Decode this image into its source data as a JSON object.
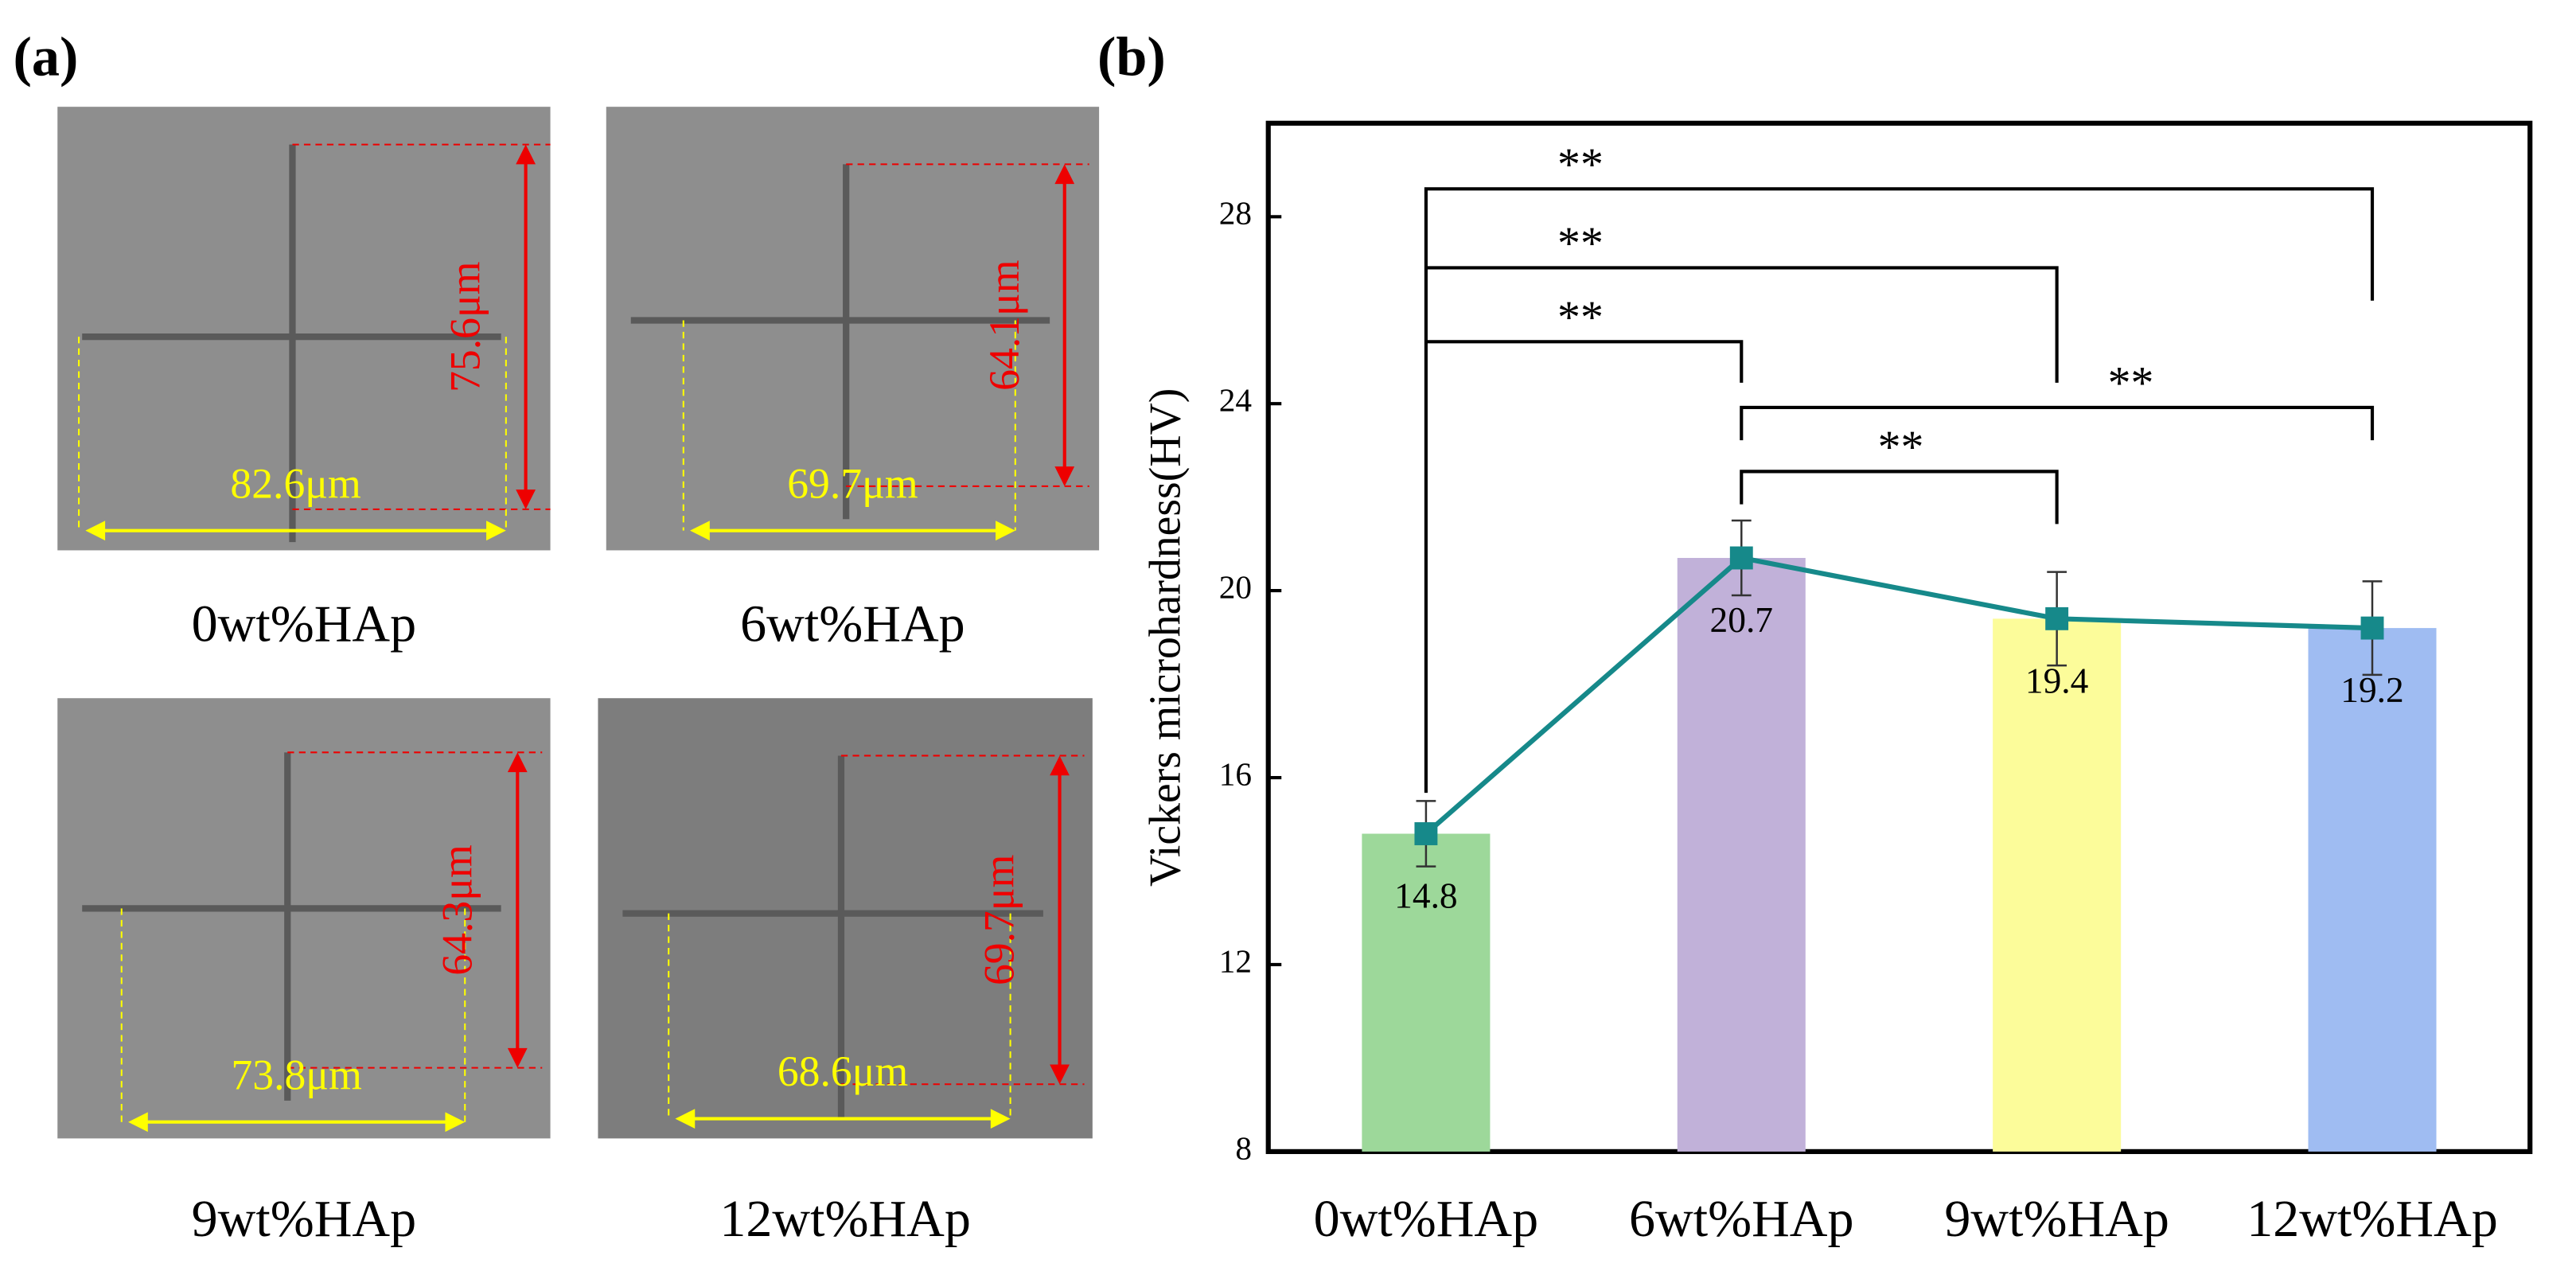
{
  "panel_a": {
    "label": "(a)",
    "images": [
      {
        "caption": "0wt%HAp",
        "width_label": "82.6μm",
        "height_label": "75.6μm"
      },
      {
        "caption": "6wt%HAp",
        "width_label": "69.7μm",
        "height_label": "64.1μm"
      },
      {
        "caption": "9wt%HAp",
        "width_label": "73.8μm",
        "height_label": "64.3μm"
      },
      {
        "caption": "12wt%HAp",
        "width_label": "68.6μm",
        "height_label": "69.7μm"
      }
    ]
  },
  "chart_data": {
    "type": "bar",
    "panel_label": "(b)",
    "ylabel": "Vickers microhardness(HV)",
    "categories": [
      "0wt%HAp",
      "6wt%HAp",
      "9wt%HAp",
      "12wt%HAp"
    ],
    "values": [
      14.8,
      20.7,
      19.4,
      19.2
    ],
    "errors": [
      0.7,
      0.8,
      1.0,
      1.0
    ],
    "colors": [
      "#9dd89a",
      "#c1b1d9",
      "#fcfc9a",
      "#9fbcf2"
    ],
    "line_color": "#16898a",
    "ylim": [
      8,
      30
    ],
    "yticks": [
      8,
      12,
      16,
      20,
      24,
      28
    ],
    "significance": [
      {
        "from": 0,
        "to": 3,
        "label": "**"
      },
      {
        "from": 0,
        "to": 2,
        "label": "**"
      },
      {
        "from": 0,
        "to": 1,
        "label": "**"
      },
      {
        "from": 1,
        "to": 3,
        "label": "**"
      },
      {
        "from": 1,
        "to": 2,
        "label": "**"
      }
    ]
  }
}
